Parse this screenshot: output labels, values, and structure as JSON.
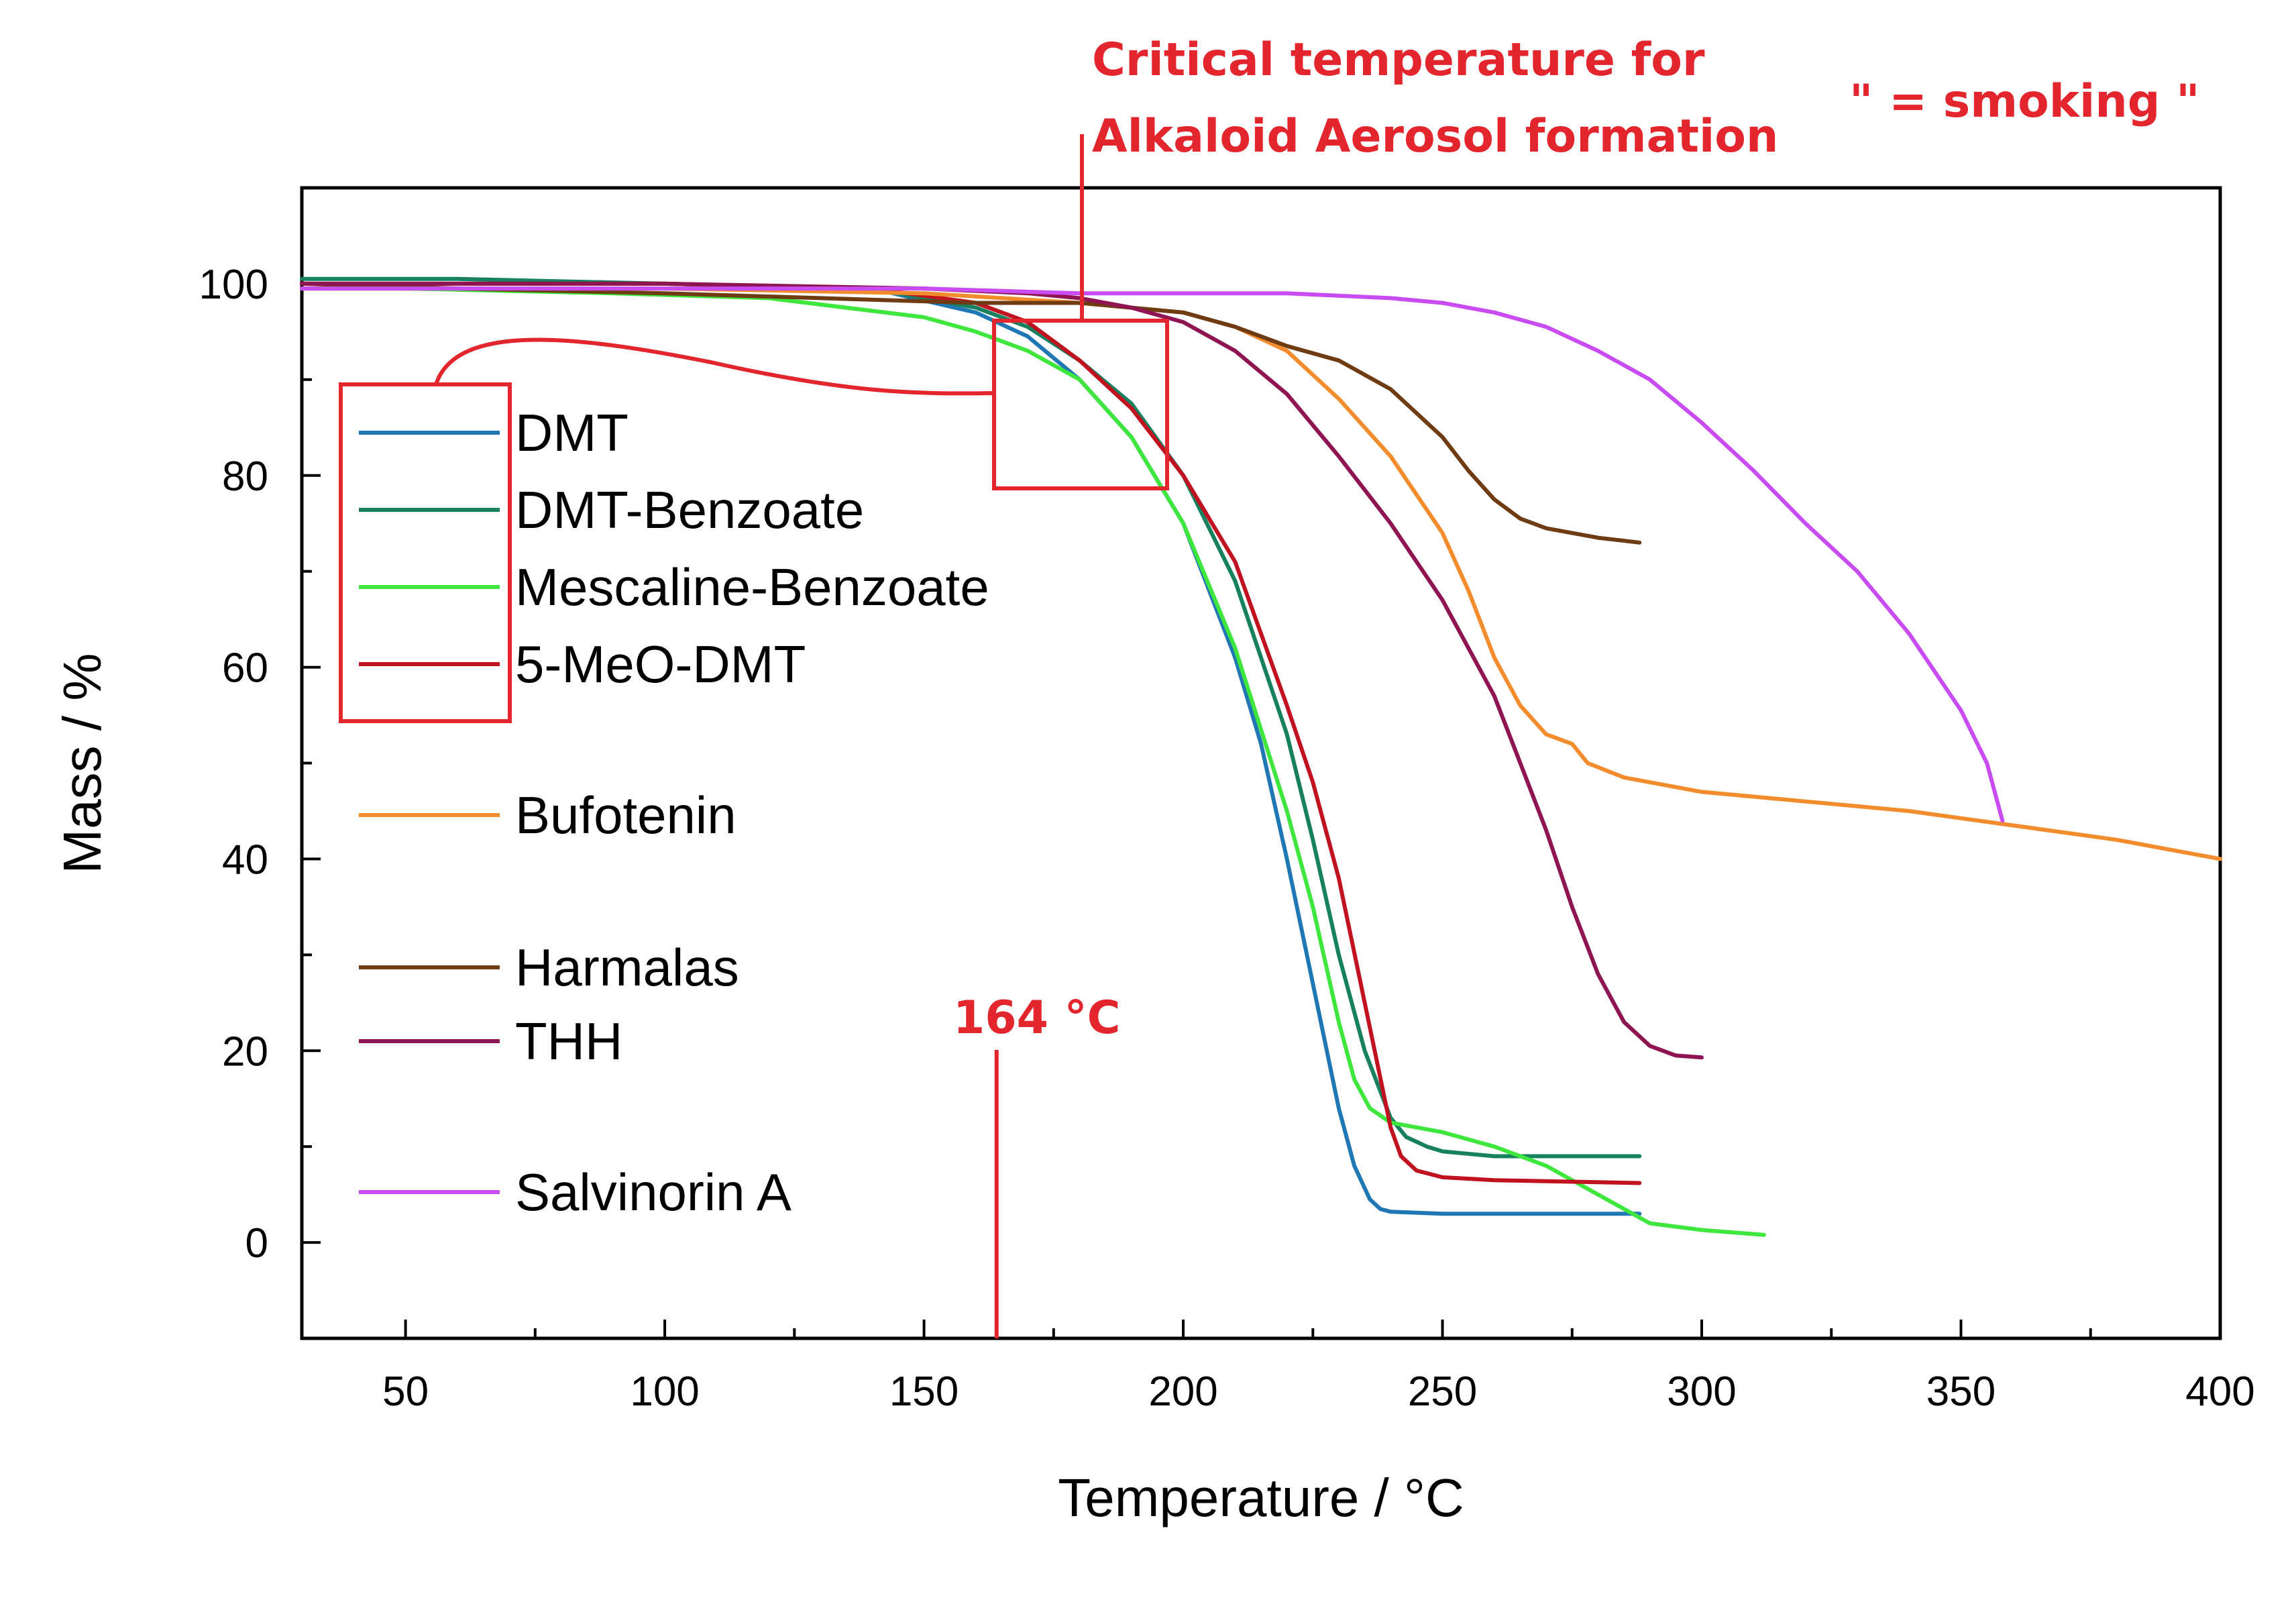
{
  "chart_data": {
    "type": "line",
    "title": "",
    "xlabel": "Temperature / °C",
    "ylabel": "Mass / %",
    "xlim": [
      30,
      400
    ],
    "ylim": [
      -10,
      110
    ],
    "xticks": [
      50,
      100,
      150,
      200,
      250,
      300,
      350,
      400
    ],
    "yticks": [
      0,
      20,
      40,
      60,
      80,
      100
    ],
    "grid": false,
    "legend_position": "left",
    "series": [
      {
        "name": "DMT",
        "color": "#1f77b4",
        "x": [
          30,
          60,
          100,
          140,
          160,
          170,
          180,
          190,
          200,
          210,
          215,
          220,
          225,
          230,
          233,
          236,
          238,
          240,
          250,
          270,
          288
        ],
        "y": [
          100,
          100,
          100,
          99.5,
          97,
          94.5,
          90,
          84,
          75,
          61,
          52,
          40,
          27,
          14,
          8,
          4.5,
          3.5,
          3.2,
          3,
          3,
          3
        ]
      },
      {
        "name": "DMT-Benzoate",
        "color": "#17805e",
        "x": [
          30,
          60,
          100,
          140,
          160,
          170,
          180,
          190,
          200,
          210,
          220,
          225,
          230,
          235,
          240,
          243,
          247,
          250,
          260,
          270,
          288
        ],
        "y": [
          100.5,
          100.5,
          100,
          99.5,
          97.5,
          95.5,
          92,
          87.5,
          80,
          69,
          53,
          42,
          30,
          20,
          13,
          11,
          10,
          9.5,
          9,
          9,
          9
        ]
      },
      {
        "name": "Mescaline-Benzoate",
        "color": "#3ee63e",
        "x": [
          30,
          50,
          90,
          120,
          150,
          160,
          170,
          180,
          190,
          200,
          210,
          220,
          225,
          230,
          233,
          236,
          240,
          250,
          260,
          270,
          280,
          290,
          300,
          312
        ],
        "y": [
          99.5,
          99.5,
          99,
          98.5,
          96.5,
          95,
          93,
          90,
          84,
          75,
          62,
          45,
          35,
          23,
          17,
          14,
          12.5,
          11.5,
          10,
          8,
          5,
          2,
          1.3,
          0.8
        ]
      },
      {
        "name": "5-MeO-DMT",
        "color": "#c0121f",
        "x": [
          30,
          60,
          100,
          140,
          160,
          170,
          180,
          190,
          200,
          210,
          220,
          225,
          230,
          235,
          240,
          242,
          245,
          250,
          260,
          288
        ],
        "y": [
          100,
          100,
          100,
          99.5,
          98,
          96,
          92,
          87,
          80,
          71,
          56,
          48,
          38,
          25,
          12,
          9,
          7.5,
          6.8,
          6.5,
          6.2
        ]
      },
      {
        "name": "Bufotenin",
        "color": "#f28c2c",
        "x": [
          30,
          100,
          150,
          180,
          200,
          210,
          220,
          230,
          240,
          250,
          255,
          260,
          265,
          270,
          275,
          278,
          285,
          300,
          320,
          340,
          360,
          380,
          400
        ],
        "y": [
          99.5,
          99.5,
          99,
          98,
          97,
          95.5,
          93,
          88,
          82,
          74,
          68,
          61,
          56,
          53,
          52,
          50,
          48.5,
          47,
          46,
          45,
          43.5,
          42,
          40
        ]
      },
      {
        "name": "Harmalas",
        "color": "#6e3b12",
        "x": [
          30,
          60,
          100,
          130,
          160,
          180,
          190,
          200,
          210,
          220,
          230,
          240,
          250,
          255,
          260,
          265,
          270,
          280,
          288
        ],
        "y": [
          100,
          99.5,
          99,
          98.5,
          98,
          98,
          97.5,
          97,
          95.5,
          93.5,
          92,
          89,
          84,
          80.5,
          77.5,
          75.5,
          74.5,
          73.5,
          73
        ]
      },
      {
        "name": "THH",
        "color": "#8f1452",
        "x": [
          30,
          100,
          150,
          170,
          180,
          190,
          200,
          210,
          220,
          230,
          240,
          250,
          255,
          260,
          265,
          270,
          275,
          280,
          285,
          290,
          295,
          300
        ],
        "y": [
          100,
          100,
          99.5,
          99,
          98.5,
          97.5,
          96,
          93,
          88.5,
          82,
          75,
          67,
          62,
          57,
          50,
          43,
          35,
          28,
          23,
          20.5,
          19.5,
          19.3
        ]
      },
      {
        "name": "Salvinorin A",
        "color": "#c94cf2",
        "x": [
          30,
          100,
          150,
          180,
          200,
          220,
          240,
          250,
          260,
          270,
          280,
          290,
          300,
          310,
          320,
          330,
          340,
          350,
          355,
          358
        ],
        "y": [
          99.5,
          99.5,
          99.5,
          99,
          99,
          99,
          98.5,
          98,
          97,
          95.5,
          93,
          90,
          85.5,
          80.5,
          75,
          70,
          63.5,
          55.5,
          50,
          44
        ]
      }
    ],
    "annotations": {
      "critical_title_line1": "Critical temperature for",
      "critical_title_line2": "Alkaloid Aerosol formation",
      "smoking": "\" = smoking \"",
      "temperature_marker": "164 °C",
      "temperature_marker_value": 164
    }
  }
}
